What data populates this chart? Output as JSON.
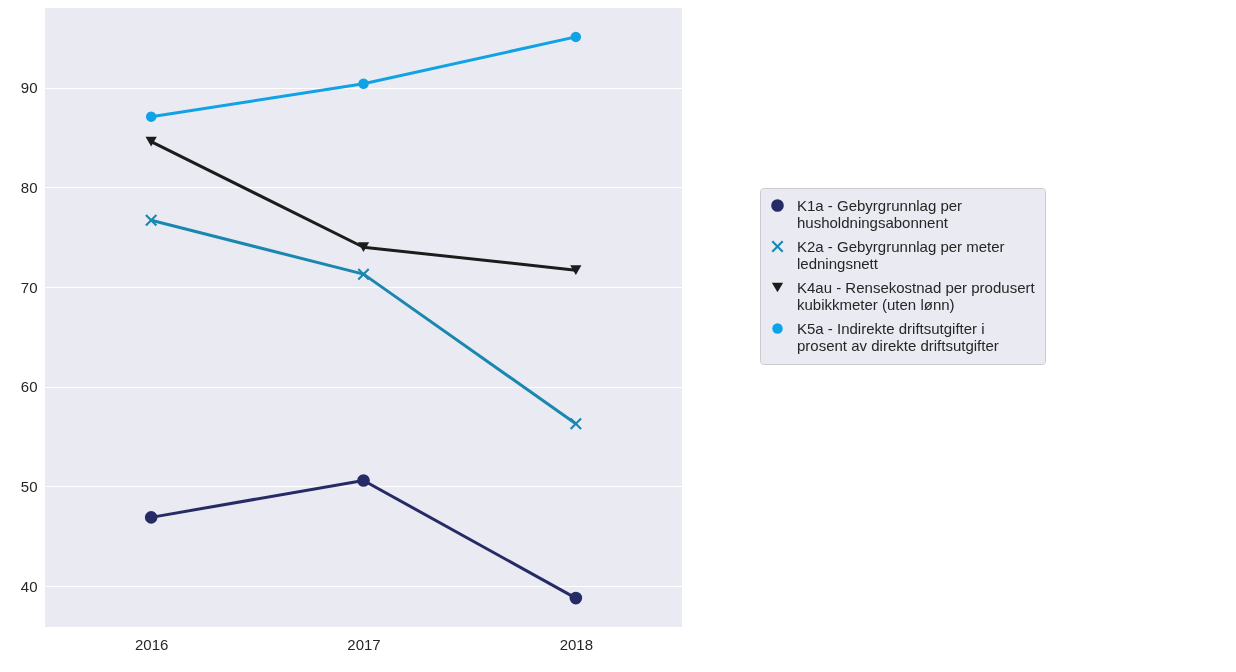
{
  "chart_data": {
    "type": "line",
    "categories": [
      "2016",
      "2017",
      "2018"
    ],
    "series": [
      {
        "name": "K1a - Gebyrgrunnlag per husholdningsabonnent",
        "color": "#262b66",
        "marker": "circle",
        "values": [
          46.9,
          50.6,
          38.8
        ]
      },
      {
        "name": "K2a - Gebyrgrunnlag per meter ledningsnett",
        "color": "#1a87b0",
        "marker": "cross",
        "values": [
          76.7,
          71.3,
          56.3
        ]
      },
      {
        "name": "K4au - Rensekostnad per produsert kubikkmeter (uten lønn)",
        "color": "#1c1c1c",
        "marker": "triangle",
        "values": [
          84.6,
          74.0,
          71.7
        ]
      },
      {
        "name": "K5a - Indirekte driftsutgifter i prosent av direkte driftsutgifter",
        "color": "#0fa3e6",
        "marker": "circle",
        "values": [
          87.1,
          90.4,
          95.1
        ]
      }
    ],
    "ylim": [
      35.9,
      98.0
    ],
    "yticks": [
      40,
      50,
      60,
      70,
      80,
      90
    ],
    "grid": "y",
    "legend": "right"
  }
}
